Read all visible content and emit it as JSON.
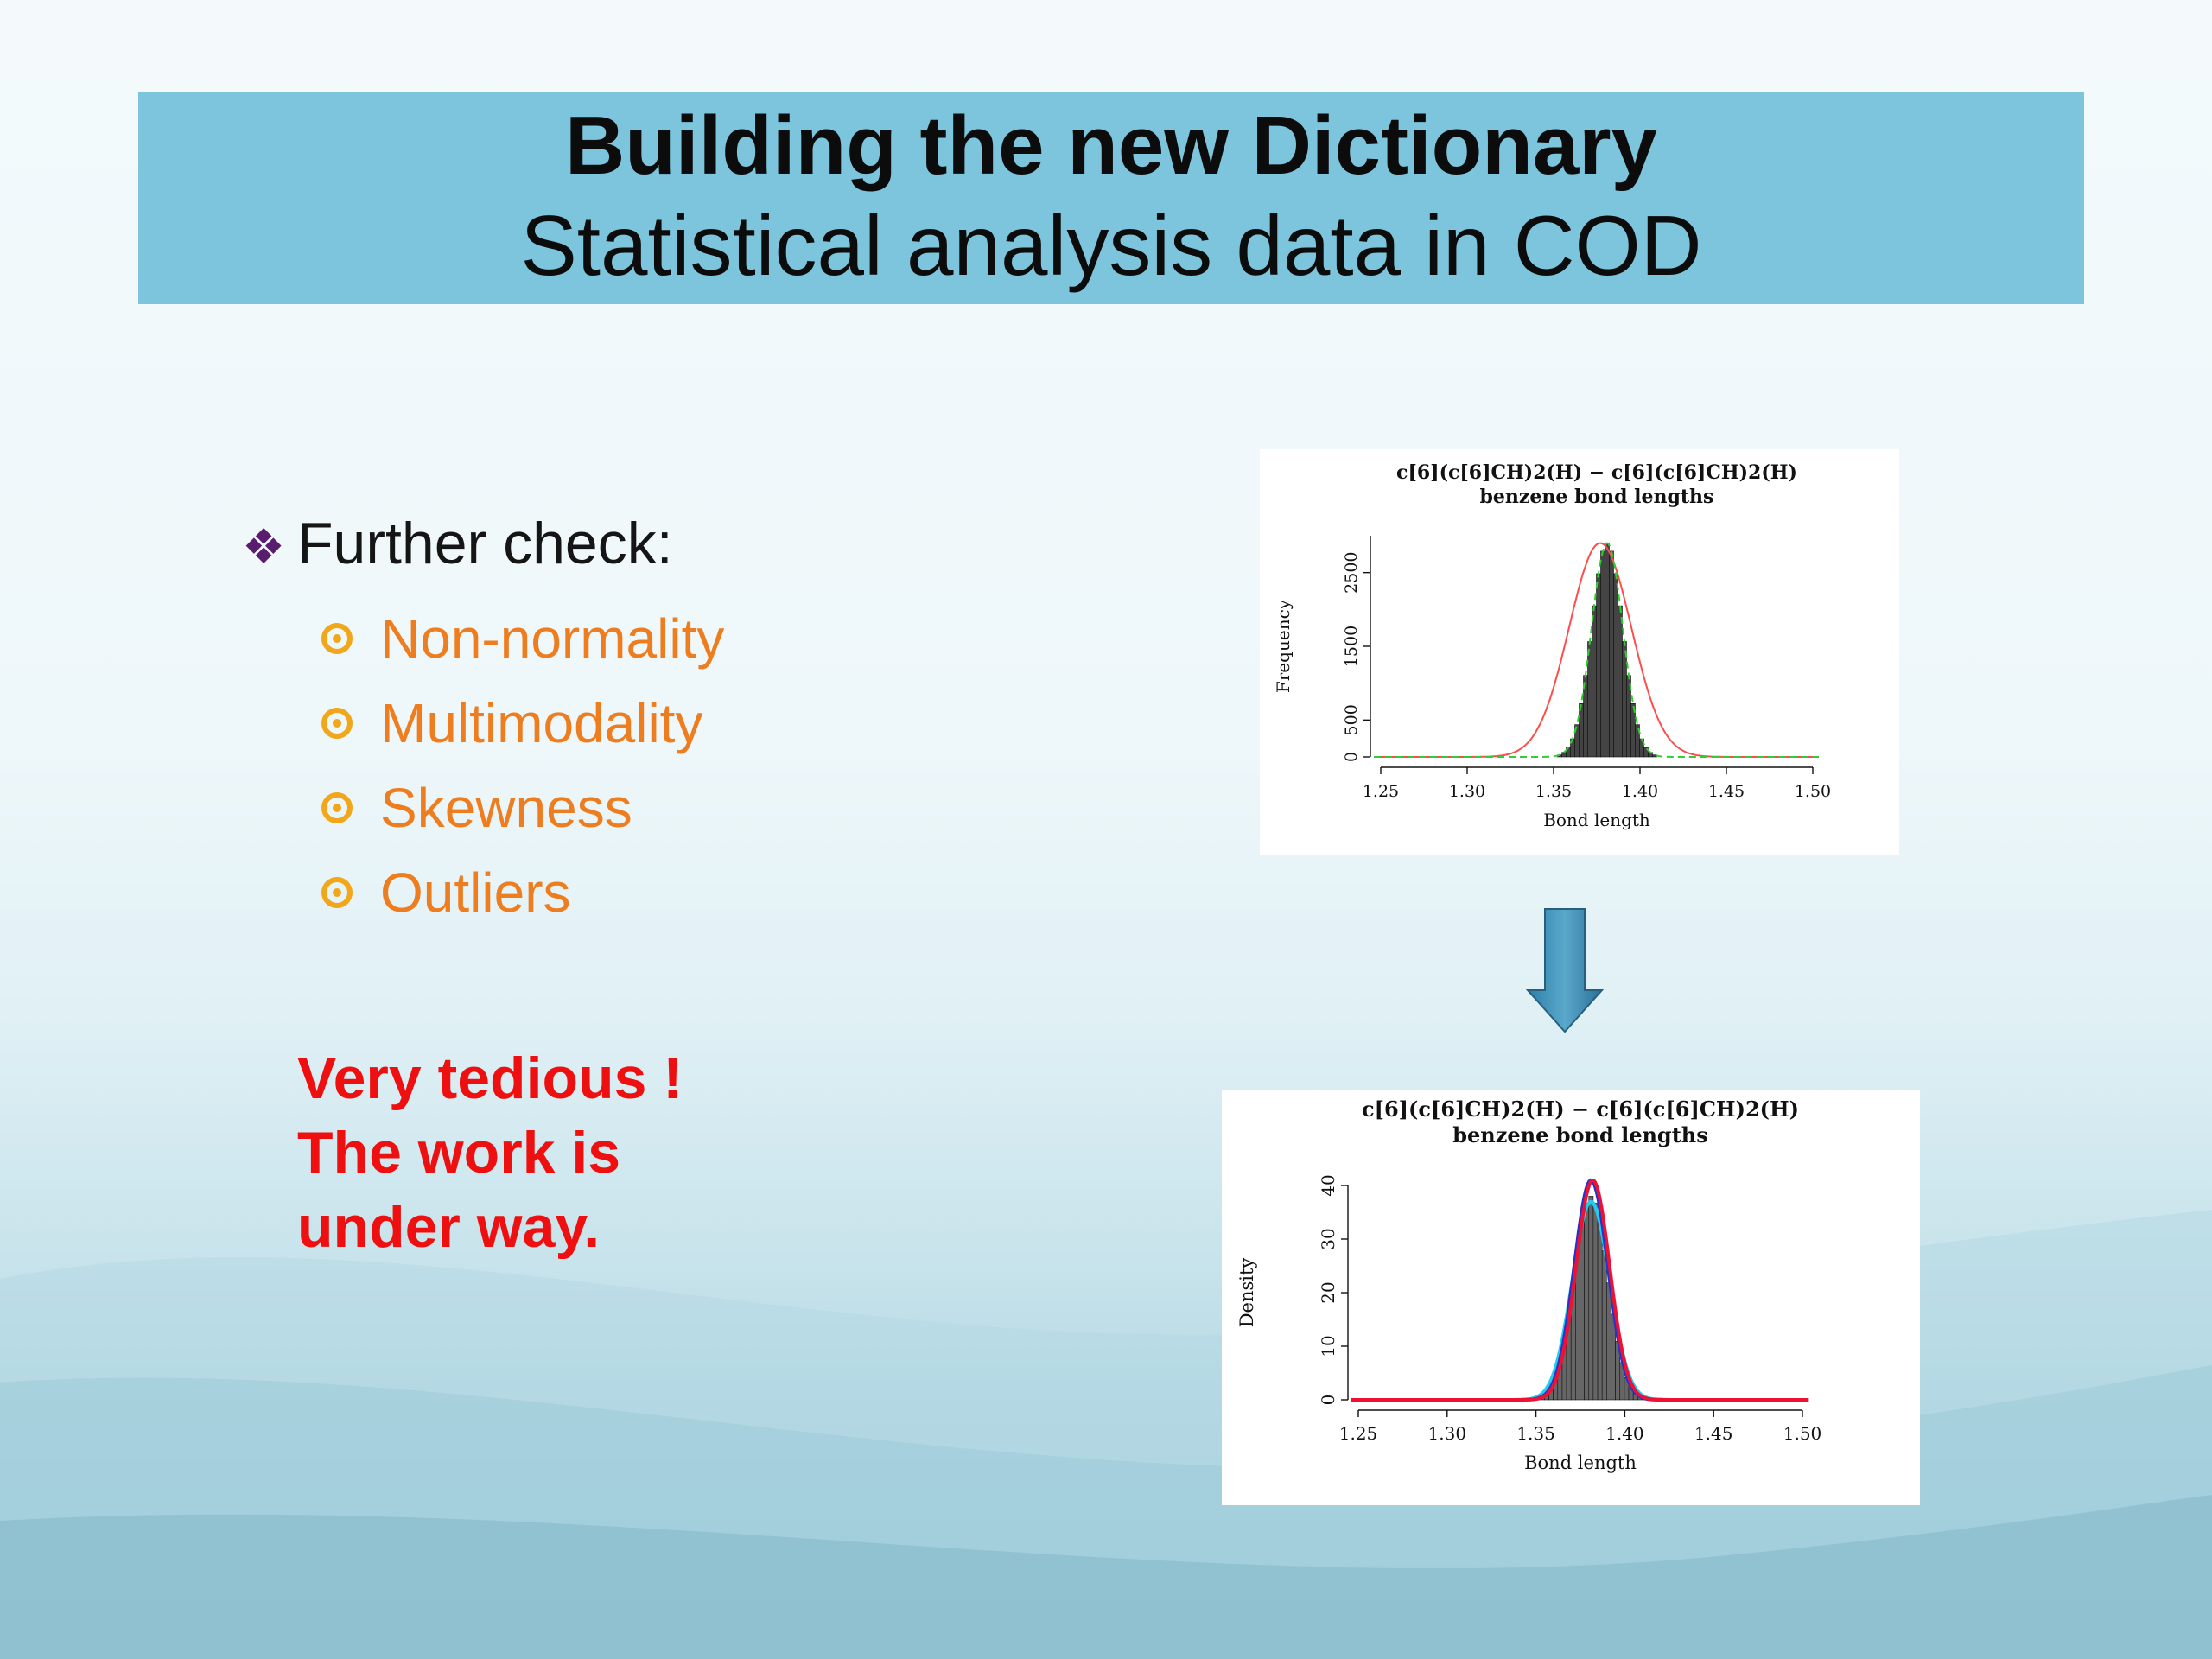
{
  "slide": {
    "title": "Building the new Dictionary",
    "subtitle": "Statistical analysis data in COD",
    "main_bullet": {
      "icon": "diamond-bullet-icon",
      "text": "Further check:"
    },
    "sub_items": [
      {
        "icon": "ring-bullet-icon",
        "text": "Non-normality"
      },
      {
        "icon": "ring-bullet-icon",
        "text": "Multimodality"
      },
      {
        "icon": "ring-bullet-icon",
        "text": "Skewness"
      },
      {
        "icon": "ring-bullet-icon",
        "text": "Outliers"
      }
    ],
    "note_lines": [
      "Very tedious !",
      "The work is",
      "under way."
    ],
    "colors": {
      "title_band": "#7cc5dc",
      "sub_item_text": "#ee7d1f",
      "ring_icon": "#f2a71b",
      "note": "#ee1010",
      "diamond": "#5a1d6e"
    },
    "arrow_icon": "down-arrow-icon"
  },
  "chart_data": [
    {
      "type": "bar",
      "title": "c[6](c[6]CH)2(H) − c[6](c[6]CH)2(H)",
      "subtitle": "benzene bond lengths",
      "xlabel": "Bond length",
      "ylabel": "Frequency",
      "xlim": [
        1.25,
        1.5
      ],
      "ylim": [
        0,
        3000
      ],
      "x_ticks": [
        "1.25",
        "1.30",
        "1.35",
        "1.40",
        "1.45",
        "1.50"
      ],
      "y_ticks": [
        "0",
        "500",
        "1500",
        "2500"
      ],
      "histogram": {
        "mean": 1.381,
        "sd": 0.009,
        "peak": 2900,
        "bin_width": 0.0025,
        "color": "#444444"
      },
      "curves": [
        {
          "name": "",
          "type": "normal",
          "mean": 1.377,
          "sd": 0.018,
          "peak": 2900,
          "color": "#ff4d4d"
        },
        {
          "name": "",
          "type": "normal",
          "mean": 1.381,
          "sd": 0.009,
          "peak": 2900,
          "color": "#33cc33",
          "dashed": true
        }
      ],
      "grid": false
    },
    {
      "type": "bar",
      "title": "c[6](c[6]CH)2(H) − c[6](c[6]CH)2(H)",
      "subtitle": "benzene bond lengths",
      "xlabel": "Bond length",
      "ylabel": "Density",
      "xlim": [
        1.25,
        1.5
      ],
      "ylim": [
        0,
        40
      ],
      "x_ticks": [
        "1.25",
        "1.30",
        "1.35",
        "1.40",
        "1.45",
        "1.50"
      ],
      "y_ticks": [
        "0",
        "10",
        "20",
        "30",
        "40"
      ],
      "histogram": {
        "mean": 1.381,
        "sd": 0.0095,
        "peak": 38,
        "bin_width": 0.0025,
        "color": "#666666"
      },
      "curves": [
        {
          "name": "",
          "type": "normal",
          "mean": 1.381,
          "sd": 0.0105,
          "peak": 37,
          "color": "#22ccee"
        },
        {
          "name": "",
          "type": "normal",
          "mean": 1.381,
          "sd": 0.0095,
          "peak": 41,
          "color": "#2233cc"
        },
        {
          "name": "",
          "type": "normal",
          "mean": 1.382,
          "sd": 0.0095,
          "peak": 41,
          "color": "#ee1133"
        }
      ],
      "grid": false
    }
  ]
}
